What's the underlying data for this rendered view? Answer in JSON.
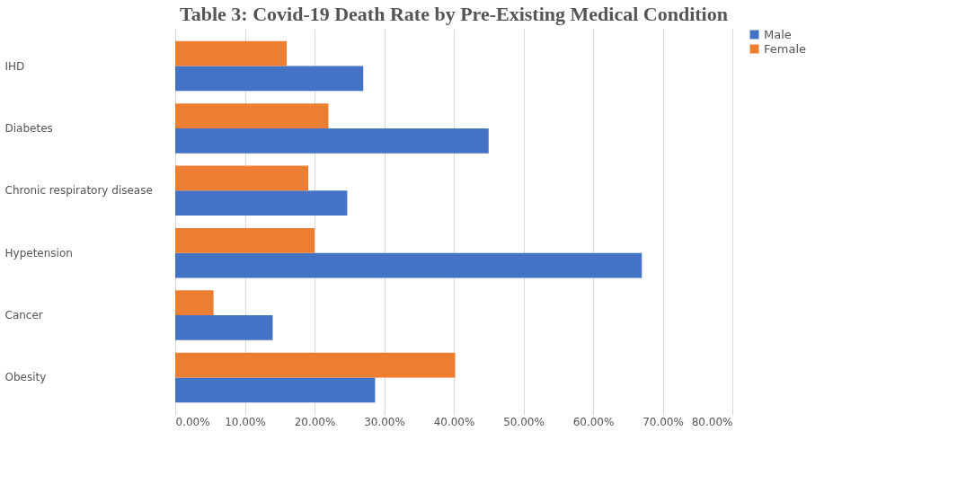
{
  "chart_data": {
    "type": "bar",
    "orientation": "horizontal",
    "title": "Table 3: Covid-19 Death Rate by Pre-Existing Medical Condition",
    "categories": [
      "IHD",
      "Diabetes",
      "Chronic respiratory disease",
      "Hypetension",
      "Cancer",
      "Obesity"
    ],
    "series": [
      {
        "name": "Male",
        "color": "#4472c4",
        "values": [
          27.0,
          45.0,
          24.7,
          67.0,
          14.0,
          28.7
        ]
      },
      {
        "name": "Female",
        "color": "#ed7d31",
        "values": [
          16.0,
          22.0,
          19.1,
          20.0,
          5.5,
          40.2
        ]
      }
    ],
    "xlim": [
      0,
      80
    ],
    "xticks": [
      {
        "value": 0,
        "label": "0.00%"
      },
      {
        "value": 10,
        "label": "10.00%"
      },
      {
        "value": 20,
        "label": "20.00%"
      },
      {
        "value": 30,
        "label": "30.00%"
      },
      {
        "value": 40,
        "label": "40.00%"
      },
      {
        "value": 50,
        "label": "50.00%"
      },
      {
        "value": 60,
        "label": "60.00%"
      },
      {
        "value": 70,
        "label": "70.00%"
      },
      {
        "value": 80,
        "label": "80.00%"
      }
    ],
    "grid": "x",
    "legend": "right"
  }
}
